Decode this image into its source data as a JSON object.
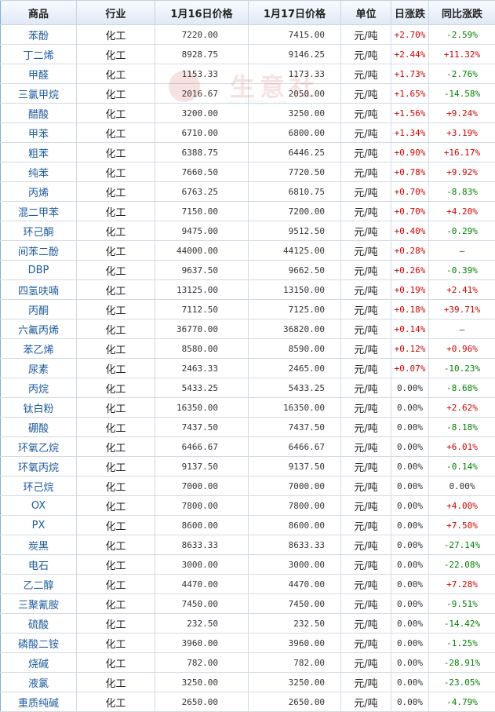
{
  "table": {
    "headers": [
      "商品",
      "行业",
      "1月16日价格",
      "1月17日价格",
      "单位",
      "日涨跌",
      "同比涨跌"
    ],
    "rows": [
      {
        "name": "苯酚",
        "industry": "化工",
        "p16": "7220.00",
        "p17": "7415.00",
        "unit": "元/吨",
        "day": "+2.70%",
        "yoy": "-2.59%"
      },
      {
        "name": "丁二烯",
        "industry": "化工",
        "p16": "8928.75",
        "p17": "9146.25",
        "unit": "元/吨",
        "day": "+2.44%",
        "yoy": "+11.32%"
      },
      {
        "name": "甲醛",
        "industry": "化工",
        "p16": "1153.33",
        "p17": "1173.33",
        "unit": "元/吨",
        "day": "+1.73%",
        "yoy": "-2.76%"
      },
      {
        "name": "三氯甲烷",
        "industry": "化工",
        "p16": "2016.67",
        "p17": "2050.00",
        "unit": "元/吨",
        "day": "+1.65%",
        "yoy": "-14.58%"
      },
      {
        "name": "醋酸",
        "industry": "化工",
        "p16": "3200.00",
        "p17": "3250.00",
        "unit": "元/吨",
        "day": "+1.56%",
        "yoy": "+9.24%"
      },
      {
        "name": "甲苯",
        "industry": "化工",
        "p16": "6710.00",
        "p17": "6800.00",
        "unit": "元/吨",
        "day": "+1.34%",
        "yoy": "+3.19%"
      },
      {
        "name": "粗苯",
        "industry": "化工",
        "p16": "6388.75",
        "p17": "6446.25",
        "unit": "元/吨",
        "day": "+0.90%",
        "yoy": "+16.17%"
      },
      {
        "name": "纯苯",
        "industry": "化工",
        "p16": "7660.50",
        "p17": "7720.50",
        "unit": "元/吨",
        "day": "+0.78%",
        "yoy": "+9.92%"
      },
      {
        "name": "丙烯",
        "industry": "化工",
        "p16": "6763.25",
        "p17": "6810.75",
        "unit": "元/吨",
        "day": "+0.70%",
        "yoy": "-8.83%"
      },
      {
        "name": "混二甲苯",
        "industry": "化工",
        "p16": "7150.00",
        "p17": "7200.00",
        "unit": "元/吨",
        "day": "+0.70%",
        "yoy": "+4.20%"
      },
      {
        "name": "环己酮",
        "industry": "化工",
        "p16": "9475.00",
        "p17": "9512.50",
        "unit": "元/吨",
        "day": "+0.40%",
        "yoy": "-0.29%"
      },
      {
        "name": "间苯二酚",
        "industry": "化工",
        "p16": "44000.00",
        "p17": "44125.00",
        "unit": "元/吨",
        "day": "+0.28%",
        "yoy": "—"
      },
      {
        "name": "DBP",
        "industry": "化工",
        "p16": "9637.50",
        "p17": "9662.50",
        "unit": "元/吨",
        "day": "+0.26%",
        "yoy": "-0.39%"
      },
      {
        "name": "四氢呋喃",
        "industry": "化工",
        "p16": "13125.00",
        "p17": "13150.00",
        "unit": "元/吨",
        "day": "+0.19%",
        "yoy": "+2.41%"
      },
      {
        "name": "丙酮",
        "industry": "化工",
        "p16": "7112.50",
        "p17": "7125.00",
        "unit": "元/吨",
        "day": "+0.18%",
        "yoy": "+39.71%"
      },
      {
        "name": "六氟丙烯",
        "industry": "化工",
        "p16": "36770.00",
        "p17": "36820.00",
        "unit": "元/吨",
        "day": "+0.14%",
        "yoy": "—"
      },
      {
        "name": "苯乙烯",
        "industry": "化工",
        "p16": "8580.00",
        "p17": "8590.00",
        "unit": "元/吨",
        "day": "+0.12%",
        "yoy": "+0.96%"
      },
      {
        "name": "尿素",
        "industry": "化工",
        "p16": "2463.33",
        "p17": "2465.00",
        "unit": "元/吨",
        "day": "+0.07%",
        "yoy": "-10.23%"
      },
      {
        "name": "丙烷",
        "industry": "化工",
        "p16": "5433.25",
        "p17": "5433.25",
        "unit": "元/吨",
        "day": "0.00%",
        "yoy": "-8.68%"
      },
      {
        "name": "钛白粉",
        "industry": "化工",
        "p16": "16350.00",
        "p17": "16350.00",
        "unit": "元/吨",
        "day": "0.00%",
        "yoy": "+2.62%"
      },
      {
        "name": "硼酸",
        "industry": "化工",
        "p16": "7437.50",
        "p17": "7437.50",
        "unit": "元/吨",
        "day": "0.00%",
        "yoy": "-8.18%"
      },
      {
        "name": "环氧乙烷",
        "industry": "化工",
        "p16": "6466.67",
        "p17": "6466.67",
        "unit": "元/吨",
        "day": "0.00%",
        "yoy": "+6.01%"
      },
      {
        "name": "环氧丙烷",
        "industry": "化工",
        "p16": "9137.50",
        "p17": "9137.50",
        "unit": "元/吨",
        "day": "0.00%",
        "yoy": "-0.14%"
      },
      {
        "name": "环己烷",
        "industry": "化工",
        "p16": "7000.00",
        "p17": "7000.00",
        "unit": "元/吨",
        "day": "0.00%",
        "yoy": "0.00%"
      },
      {
        "name": "OX",
        "industry": "化工",
        "p16": "7800.00",
        "p17": "7800.00",
        "unit": "元/吨",
        "day": "0.00%",
        "yoy": "+4.00%"
      },
      {
        "name": "PX",
        "industry": "化工",
        "p16": "8600.00",
        "p17": "8600.00",
        "unit": "元/吨",
        "day": "0.00%",
        "yoy": "+7.50%"
      },
      {
        "name": "炭黑",
        "industry": "化工",
        "p16": "8633.33",
        "p17": "8633.33",
        "unit": "元/吨",
        "day": "0.00%",
        "yoy": "-27.14%"
      },
      {
        "name": "电石",
        "industry": "化工",
        "p16": "3000.00",
        "p17": "3000.00",
        "unit": "元/吨",
        "day": "0.00%",
        "yoy": "-22.08%"
      },
      {
        "name": "乙二醇",
        "industry": "化工",
        "p16": "4470.00",
        "p17": "4470.00",
        "unit": "元/吨",
        "day": "0.00%",
        "yoy": "+7.28%"
      },
      {
        "name": "三聚氰胺",
        "industry": "化工",
        "p16": "7450.00",
        "p17": "7450.00",
        "unit": "元/吨",
        "day": "0.00%",
        "yoy": "-9.51%"
      },
      {
        "name": "硫酸",
        "industry": "化工",
        "p16": "232.50",
        "p17": "232.50",
        "unit": "元/吨",
        "day": "0.00%",
        "yoy": "-14.42%"
      },
      {
        "name": "磷酸二铵",
        "industry": "化工",
        "p16": "3960.00",
        "p17": "3960.00",
        "unit": "元/吨",
        "day": "0.00%",
        "yoy": "-1.25%"
      },
      {
        "name": "烧碱",
        "industry": "化工",
        "p16": "782.00",
        "p17": "782.00",
        "unit": "元/吨",
        "day": "0.00%",
        "yoy": "-28.91%"
      },
      {
        "name": "液氯",
        "industry": "化工",
        "p16": "3250.00",
        "p17": "3250.00",
        "unit": "元/吨",
        "day": "0.00%",
        "yoy": "-23.05%"
      },
      {
        "name": "重质纯碱",
        "industry": "化工",
        "p16": "2650.00",
        "p17": "2650.00",
        "unit": "元/吨",
        "day": "0.00%",
        "yoy": "-4.79%"
      }
    ]
  },
  "watermark": {
    "text": "生意社",
    "url": "www.100ppi.com",
    "color": "#c0392b"
  },
  "colors": {
    "up": "#d00000",
    "down": "#008000",
    "flat": "#333333",
    "link": "#1d5a9c",
    "header_bg": "#dfe8f5"
  }
}
